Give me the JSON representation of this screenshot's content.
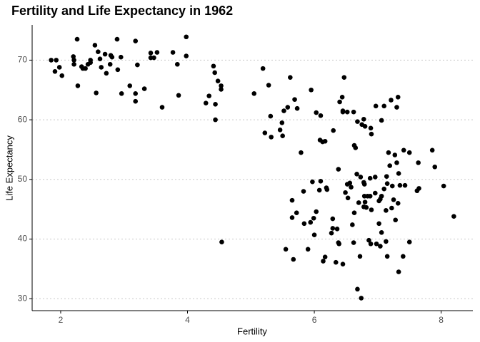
{
  "chart_data": {
    "type": "scatter",
    "title": "Fertility and Life Expectancy in 1962",
    "x_label": "Fertility",
    "y_label": "Life Expectancy",
    "x": [
      1.85,
      1.93,
      1.91,
      1.98,
      2.02,
      2.2,
      2.21,
      2.21,
      2.26,
      2.27,
      2.33,
      2.35,
      2.39,
      2.43,
      2.47,
      2.47,
      2.54,
      2.59,
      2.56,
      2.62,
      2.64,
      2.7,
      2.72,
      2.79,
      2.81,
      2.78,
      2.89,
      2.9,
      2.95,
      2.96,
      3.09,
      3.18,
      3.18,
      3.21,
      3.18,
      3.32,
      3.42,
      3.42,
      3.47,
      3.52,
      3.6,
      3.77,
      3.84,
      3.86,
      3.98,
      3.98,
      4.29,
      4.34,
      4.41,
      4.43,
      4.48,
      4.53,
      4.44,
      4.53,
      4.44,
      4.54,
      5.05,
      5.19,
      5.28,
      5.22,
      5.31,
      5.32,
      5.46,
      5.49,
      5.5,
      5.52,
      5.58,
      5.62,
      5.69,
      5.73,
      5.79,
      5.95,
      6.03,
      6.1,
      6.09,
      6.13,
      6.17,
      6.3,
      6.4,
      6.45,
      6.45,
      6.47,
      6.44,
      6.52,
      6.62,
      6.63,
      6.65,
      6.68,
      6.78,
      6.75,
      6.8,
      6.89,
      6.9,
      6.97,
      7.06,
      7.1,
      7.21,
      7.3,
      7.32,
      5.65,
      5.65,
      5.72,
      5.83,
      5.84,
      5.97,
      5.94,
      5.99,
      6.0,
      6.03,
      5.9,
      5.55,
      5.67,
      6.08,
      6.1,
      6.14,
      6.17,
      6.19,
      6.2,
      6.27,
      6.29,
      6.29,
      6.36,
      6.38,
      6.38,
      6.39,
      6.34,
      6.45,
      6.49,
      6.52,
      6.53,
      6.56,
      6.58,
      6.6,
      6.62,
      6.63,
      6.67,
      6.7,
      6.72,
      6.73,
      6.68,
      6.78,
      6.78,
      6.79,
      6.79,
      6.8,
      6.82,
      6.86,
      6.88,
      6.9,
      6.74,
      6.84,
      6.88,
      6.89,
      6.96,
      6.98,
      6.96,
      7.02,
      7.02,
      7.04,
      7.04,
      7.06,
      7.06,
      7.1,
      7.14,
      7.15,
      7.13,
      7.13,
      7.15,
      7.17,
      7.19,
      7.23,
      7.25,
      7.27,
      7.28,
      7.32,
      7.33,
      7.3,
      7.35,
      7.43,
      7.41,
      7.5,
      7.5,
      7.4,
      7.33,
      7.64,
      7.62,
      7.65,
      7.86,
      7.9,
      8.04,
      8.2,
      7.22
    ],
    "values": [
      70.0,
      70.0,
      68.1,
      68.8,
      67.4,
      70.6,
      70.0,
      69.3,
      73.5,
      65.7,
      68.9,
      68.6,
      68.6,
      69.3,
      70.0,
      69.6,
      72.5,
      71.4,
      64.5,
      70.2,
      68.8,
      71.0,
      67.8,
      70.8,
      70.5,
      69.3,
      73.5,
      68.4,
      70.5,
      64.4,
      65.7,
      73.2,
      64.4,
      69.2,
      63.1,
      65.2,
      71.2,
      70.4,
      70.4,
      71.3,
      62.1,
      71.3,
      69.3,
      64.1,
      73.9,
      70.7,
      62.8,
      64.0,
      69.0,
      67.9,
      66.5,
      65.7,
      62.6,
      65.1,
      60.0,
      39.5,
      64.4,
      68.6,
      65.8,
      57.8,
      60.6,
      57.1,
      58.3,
      59.5,
      57.3,
      61.5,
      62.1,
      67.1,
      63.4,
      61.9,
      54.5,
      65.0,
      61.2,
      60.7,
      56.6,
      56.3,
      56.4,
      58.2,
      63.0,
      61.3,
      61.5,
      67.1,
      63.8,
      61.3,
      61.3,
      55.7,
      55.3,
      59.7,
      60.1,
      59.2,
      58.9,
      58.6,
      57.6,
      62.3,
      59.9,
      62.3,
      63.3,
      62.1,
      63.8,
      46.5,
      43.6,
      44.4,
      48.0,
      42.6,
      49.6,
      42.8,
      43.5,
      40.7,
      44.6,
      38.3,
      38.3,
      36.6,
      48.2,
      49.7,
      36.3,
      37.0,
      48.6,
      48.3,
      41.0,
      43.4,
      41.8,
      41.7,
      51.7,
      39.4,
      39.2,
      36.1,
      35.8,
      47.8,
      49.2,
      46.9,
      49.4,
      48.7,
      42.4,
      39.4,
      44.4,
      50.9,
      46.1,
      37.1,
      50.4,
      31.6,
      49.5,
      45.4,
      49.2,
      47.2,
      46.2,
      45.3,
      39.8,
      50.2,
      44.9,
      30.1,
      47.2,
      47.2,
      39.2,
      50.4,
      39.2,
      47.7,
      42.6,
      46.4,
      46.7,
      38.8,
      47.2,
      41.1,
      48.4,
      50.5,
      49.3,
      44.8,
      39.6,
      37.1,
      54.5,
      52.3,
      48.9,
      46.6,
      54.1,
      43.2,
      46.0,
      51.0,
      52.8,
      49.0,
      49.0,
      54.9,
      54.5,
      39.5,
      37.1,
      34.5,
      52.8,
      48.1,
      48.5,
      54.9,
      52.1,
      48.9,
      43.8,
      45.2
    ],
    "color": "#000000",
    "xlim": [
      1.55,
      8.5
    ],
    "xticks": [
      2,
      4,
      6,
      8
    ],
    "ylim": [
      28,
      75.9
    ],
    "yticks": [
      30,
      40,
      50,
      60,
      70
    ],
    "grid": true
  }
}
